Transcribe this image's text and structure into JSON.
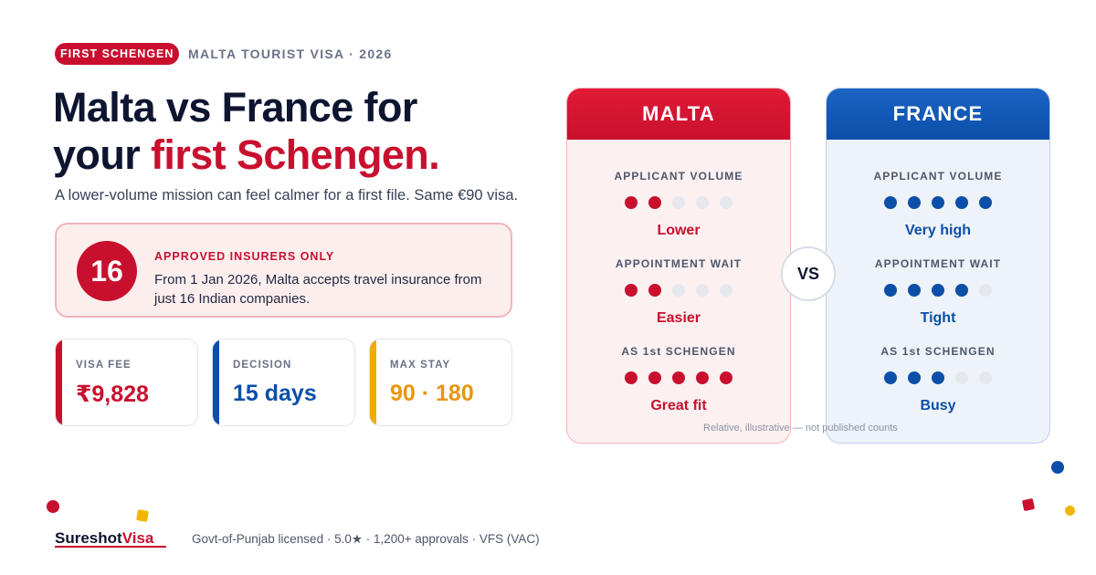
{
  "header": {
    "badge": "FIRST SCHENGEN",
    "eyebrow": "MALTA TOURIST VISA · 2026"
  },
  "headline": {
    "line1": "Malta vs France for",
    "line2_prefix": "your ",
    "line2_accent": "first Schengen."
  },
  "subline": "A lower-volume mission can feel calmer for a first file. Same €90 visa.",
  "insurers": {
    "number": "16",
    "title": "APPROVED INSURERS ONLY",
    "text": "From 1 Jan 2026, Malta accepts travel insurance from just 16 Indian companies."
  },
  "stats": [
    {
      "label": "VISA FEE",
      "value": "₹9,828",
      "color": "#c8102e"
    },
    {
      "label": "DECISION",
      "value": "15 days",
      "color": "#0b4fa8"
    },
    {
      "label": "MAX STAY",
      "value": "90 · 180",
      "color": "#f2a900"
    }
  ],
  "comparison": {
    "vs_label": "VS",
    "footnote": "Relative, illustrative — not published counts",
    "malta": {
      "name": "MALTA",
      "metrics": [
        {
          "label": "APPLICANT VOLUME",
          "level": 2,
          "max": 5,
          "value": "Lower"
        },
        {
          "label": "APPOINTMENT WAIT",
          "level": 2,
          "max": 5,
          "value": "Easier"
        },
        {
          "label": "AS 1st SCHENGEN",
          "level": 5,
          "max": 5,
          "value": "Great fit"
        }
      ]
    },
    "france": {
      "name": "FRANCE",
      "metrics": [
        {
          "label": "APPLICANT VOLUME",
          "level": 5,
          "max": 5,
          "value": "Very high"
        },
        {
          "label": "APPOINTMENT WAIT",
          "level": 4,
          "max": 5,
          "value": "Tight"
        },
        {
          "label": "AS 1st SCHENGEN",
          "level": 3,
          "max": 5,
          "value": "Busy"
        }
      ]
    }
  },
  "footer": {
    "logo_part1": "Sureshot",
    "logo_part2": "Visa",
    "text": "Govt-of-Punjab licensed · 5.0★ · 1,200+ approvals · VFS (VAC)"
  },
  "colors": {
    "brand_red": "#c8102e",
    "brand_blue": "#0b4fa8",
    "accent_yellow": "#f2a900"
  }
}
